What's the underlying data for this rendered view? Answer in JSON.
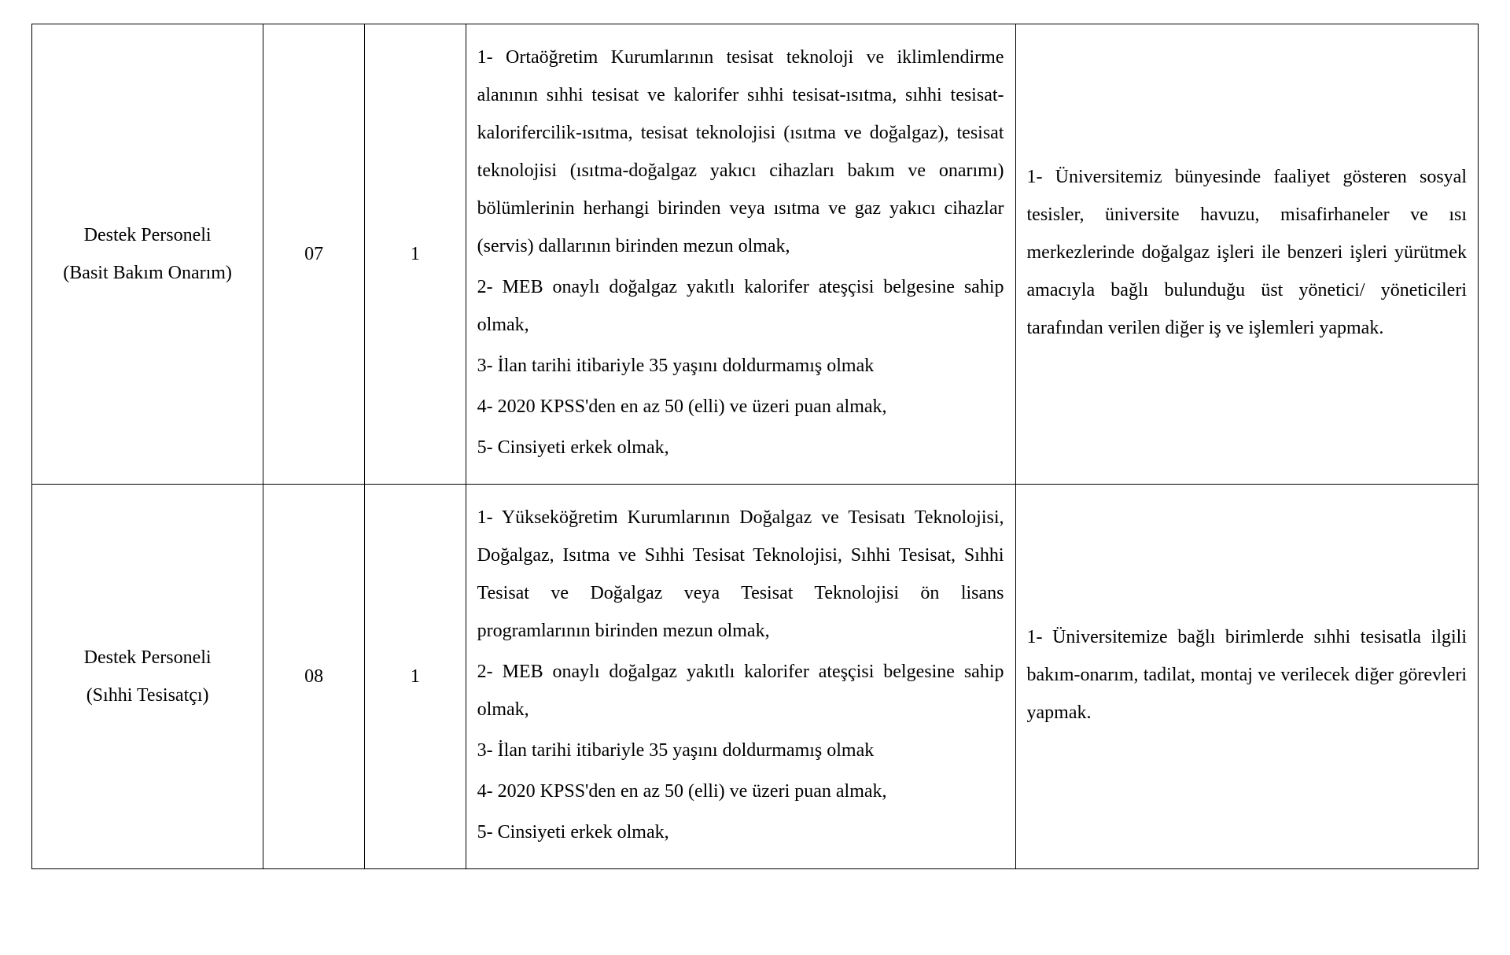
{
  "table": {
    "colors": {
      "border": "#000000",
      "text": "#000000",
      "background": "#ffffff"
    },
    "font": {
      "family": "Times New Roman",
      "size_pt": 12,
      "line_height": 2.0
    },
    "columns": [
      {
        "key": "position",
        "width_pct": 16,
        "align": "center"
      },
      {
        "key": "code",
        "width_pct": 7,
        "align": "center"
      },
      {
        "key": "count",
        "width_pct": 7,
        "align": "center"
      },
      {
        "key": "reqs",
        "width_pct": 38,
        "align": "justify"
      },
      {
        "key": "duties",
        "width_pct": 32,
        "align": "justify"
      }
    ],
    "rows": [
      {
        "position_line1": "Destek Personeli",
        "position_line2": "(Basit Bakım Onarım)",
        "code": "07",
        "count": "1",
        "requirements": [
          "1- Ortaöğretim Kurumlarının tesisat teknoloji ve iklimlendirme alanının sıhhi tesisat ve kalorifer sıhhi tesisat-ısıtma, sıhhi tesisat-kalorifercilik-ısıtma, tesisat teknolojisi (ısıtma ve doğalgaz), tesisat teknolojisi (ısıtma-doğalgaz yakıcı cihazları bakım ve onarımı) bölümlerinin herhangi birinden veya ısıtma ve gaz yakıcı cihazlar (servis) dallarının birinden mezun olmak,",
          "2- MEB onaylı doğalgaz yakıtlı kalorifer ateşçisi belgesine sahip olmak,",
          "3- İlan tarihi itibariyle 35 yaşını doldurmamış olmak",
          "4- 2020 KPSS'den en az 50 (elli) ve üzeri puan almak,",
          "5- Cinsiyeti erkek olmak,"
        ],
        "duties": [
          "1- Üniversitemiz bünyesinde faaliyet gösteren sosyal tesisler, üniversite havuzu, misafirhaneler ve ısı merkezlerinde doğalgaz işleri ile benzeri işleri yürütmek amacıyla bağlı bulunduğu üst yönetici/ yöneticileri tarafından verilen diğer iş ve işlemleri yapmak."
        ]
      },
      {
        "position_line1": "Destek Personeli",
        "position_line2": "(Sıhhi Tesisatçı)",
        "code": "08",
        "count": "1",
        "requirements": [
          "1- Yükseköğretim Kurumlarının Doğalgaz ve Tesisatı Teknolojisi, Doğalgaz, Isıtma ve Sıhhi Tesisat Teknolojisi, Sıhhi Tesisat, Sıhhi Tesisat ve Doğalgaz veya Tesisat Teknolojisi ön lisans programlarının birinden mezun olmak,",
          "2- MEB onaylı doğalgaz yakıtlı kalorifer ateşçisi belgesine sahip olmak,",
          "3- İlan tarihi itibariyle 35 yaşını doldurmamış olmak",
          "4- 2020 KPSS'den en az 50 (elli) ve üzeri puan almak,",
          "5- Cinsiyeti erkek olmak,"
        ],
        "duties": [
          "1- Üniversitemize bağlı birimlerde sıhhi tesisatla ilgili bakım-onarım, tadilat, montaj ve verilecek diğer görevleri yapmak."
        ]
      }
    ]
  }
}
